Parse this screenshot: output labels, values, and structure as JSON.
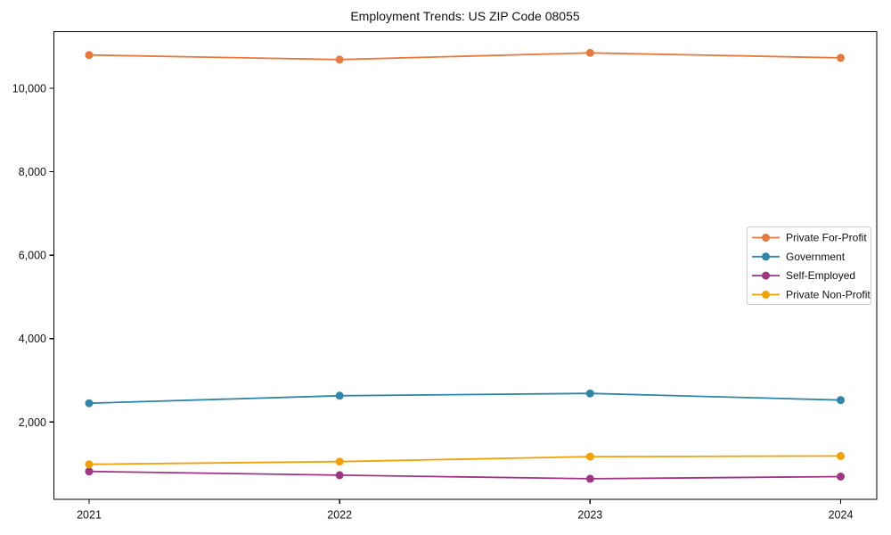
{
  "chart_data": {
    "type": "line",
    "title": "Employment Trends: US ZIP Code 08055",
    "x_categories": [
      "2021",
      "2022",
      "2023",
      "2024"
    ],
    "series": [
      {
        "name": "Private For-Profit",
        "color": "#E8793E",
        "values": [
          10800,
          10690,
          10850,
          10730
        ]
      },
      {
        "name": "Government",
        "color": "#2E86A8",
        "values": [
          2450,
          2630,
          2685,
          2525
        ]
      },
      {
        "name": "Self-Employed",
        "color": "#A03584",
        "values": [
          815,
          725,
          640,
          690
        ]
      },
      {
        "name": "Private Non-Profit",
        "color": "#F2A104",
        "values": [
          985,
          1050,
          1170,
          1185
        ]
      }
    ],
    "yticks": [
      2000,
      4000,
      6000,
      8000,
      10000
    ],
    "ytick_labels": [
      "2,000",
      "4,000",
      "6,000",
      "8,000",
      "10,000"
    ],
    "ylim": [
      135,
      11370
    ],
    "xlabel": "",
    "ylabel": "",
    "grid": false,
    "legend_position": "center-right",
    "axis_color": "#000000",
    "legend_border_color": "#cccccc"
  }
}
